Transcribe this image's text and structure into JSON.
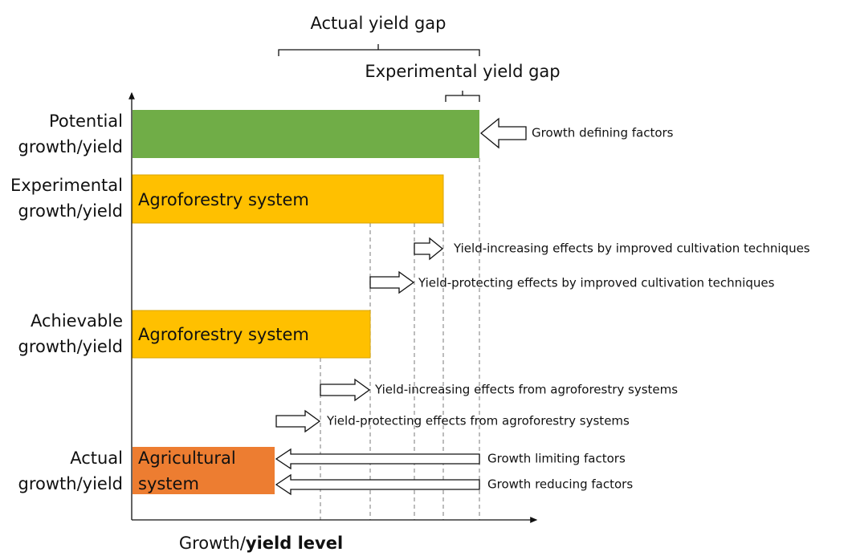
{
  "gaps": {
    "actual": "Actual yield gap",
    "experimental": "Experimental yield gap"
  },
  "levels": [
    {
      "label": [
        "Potential",
        "growth/yield"
      ]
    },
    {
      "label": [
        "Experimental",
        "growth/yield"
      ],
      "bar_text": [
        "Agroforestry system"
      ]
    },
    {
      "label": [
        "Achievable",
        "growth/yield"
      ],
      "bar_text": [
        "Agroforestry system"
      ]
    },
    {
      "label": [
        "Actual",
        "growth/yield"
      ],
      "bar_text": [
        "Agricultural",
        "system"
      ]
    }
  ],
  "effects": [
    "Growth defining factors",
    "Yield-increasing effects by improved cultivation techniques",
    "Yield-protecting effects by improved cultivation techniques",
    "Yield-increasing effects from agroforestry systems",
    "Yield-protecting effects from agroforestry systems",
    "Growth limiting factors",
    "Growth reducing factors"
  ],
  "x_axis_label": [
    "Growth/",
    "yield level"
  ]
}
